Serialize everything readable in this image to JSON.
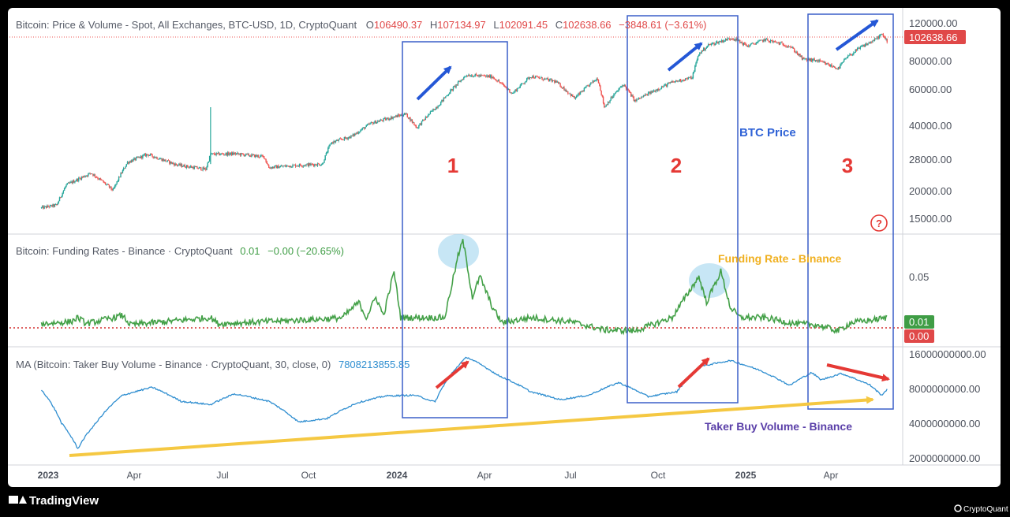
{
  "chart_data": [
    {
      "type": "candlestick",
      "title": "Bitcoin: Price & Volume - Spot, All Exchanges, BTC-USD, 1D, CryptoQuant",
      "ohlc": {
        "o_label": "O",
        "o": "106490.37",
        "h_label": "H",
        "h": "107134.97",
        "l_label": "L",
        "l": "102091.45",
        "c_label": "C",
        "c": "102638.66",
        "change": "−3848.61 (−3.61%)"
      },
      "last_price": "102638.66",
      "scale": "log",
      "y_ticks": [
        "120000.00",
        "80000.00",
        "60000.00",
        "40000.00",
        "28000.00",
        "20000.00",
        "15000.00"
      ],
      "series": [
        {
          "points": [
            [
              "2022-12-25",
              16800
            ],
            [
              "2023-01-10",
              17300
            ],
            [
              "2023-01-20",
              21500
            ],
            [
              "2023-02-15",
              24500
            ],
            [
              "2023-03-10",
              20300
            ],
            [
              "2023-03-25",
              27500
            ],
            [
              "2023-04-15",
              30000
            ],
            [
              "2023-05-15",
              26800
            ],
            [
              "2023-06-15",
              25500
            ],
            [
              "2023-06-20",
              30000
            ],
            [
              "2023-07-15",
              30200
            ],
            [
              "2023-08-15",
              29200
            ],
            [
              "2023-08-20",
              26000
            ],
            [
              "2023-09-15",
              26600
            ],
            [
              "2023-10-15",
              27000
            ],
            [
              "2023-10-24",
              34000
            ],
            [
              "2023-11-15",
              36500
            ],
            [
              "2023-12-05",
              42000
            ],
            [
              "2024-01-10",
              46500
            ],
            [
              "2024-01-22",
              40000
            ],
            [
              "2024-02-15",
              52000
            ],
            [
              "2024-03-14",
              71000
            ],
            [
              "2024-04-10",
              69500
            ],
            [
              "2024-05-01",
              58000
            ],
            [
              "2024-05-20",
              70000
            ],
            [
              "2024-06-15",
              66000
            ],
            [
              "2024-07-05",
              55000
            ],
            [
              "2024-07-29",
              68500
            ],
            [
              "2024-08-05",
              50000
            ],
            [
              "2024-08-25",
              64000
            ],
            [
              "2024-09-06",
              53500
            ],
            [
              "2024-10-15",
              65500
            ],
            [
              "2024-11-05",
              69000
            ],
            [
              "2024-11-12",
              89000
            ],
            [
              "2024-11-22",
              98000
            ],
            [
              "2024-12-17",
              106000
            ],
            [
              "2025-01-02",
              97000
            ],
            [
              "2025-01-20",
              104000
            ],
            [
              "2025-02-15",
              97000
            ],
            [
              "2025-03-01",
              84000
            ],
            [
              "2025-03-15",
              83000
            ],
            [
              "2025-04-07",
              76000
            ],
            [
              "2025-04-15",
              85000
            ],
            [
              "2025-05-01",
              96000
            ],
            [
              "2025-05-15",
              103500
            ],
            [
              "2025-05-22",
              110000
            ],
            [
              "2025-05-28",
              102638
            ]
          ]
        }
      ]
    },
    {
      "type": "line",
      "title": "Bitcoin: Funding Rates - Binance · CryptoQuant",
      "value_label": "0.01",
      "change": "−0.00 (−20.65%)",
      "y_ticks": [
        "0.05"
      ],
      "badges": [
        "0.01",
        "0.00"
      ],
      "series": [
        {
          "points": [
            [
              "2022-12-25",
              0.004
            ],
            [
              "2023-01-25",
              0.006
            ],
            [
              "2023-02-01",
              0.01
            ],
            [
              "2023-02-10",
              0.004
            ],
            [
              "2023-03-20",
              0.012
            ],
            [
              "2023-03-28",
              0.003
            ],
            [
              "2023-06-20",
              0.01
            ],
            [
              "2023-06-28",
              0.004
            ],
            [
              "2023-10-24",
              0.009
            ],
            [
              "2023-11-05",
              0.01
            ],
            [
              "2023-11-22",
              0.025
            ],
            [
              "2023-11-30",
              0.01
            ],
            [
              "2023-12-10",
              0.03
            ],
            [
              "2023-12-18",
              0.012
            ],
            [
              "2023-12-29",
              0.055
            ],
            [
              "2024-01-05",
              0.01
            ],
            [
              "2024-02-20",
              0.01
            ],
            [
              "2024-03-05",
              0.07
            ],
            [
              "2024-03-10",
              0.085
            ],
            [
              "2024-03-14",
              0.065
            ],
            [
              "2024-03-20",
              0.03
            ],
            [
              "2024-03-28",
              0.05
            ],
            [
              "2024-04-10",
              0.02
            ],
            [
              "2024-04-20",
              0.005
            ],
            [
              "2024-05-20",
              0.01
            ],
            [
              "2024-07-01",
              0.006
            ],
            [
              "2024-08-05",
              -0.002
            ],
            [
              "2024-09-06",
              -0.003
            ],
            [
              "2024-10-15",
              0.01
            ],
            [
              "2024-11-12",
              0.05
            ],
            [
              "2024-11-20",
              0.025
            ],
            [
              "2024-12-05",
              0.055
            ],
            [
              "2024-12-15",
              0.02
            ],
            [
              "2024-12-25",
              0.01
            ],
            [
              "2025-01-20",
              0.01
            ],
            [
              "2025-02-20",
              0.004
            ],
            [
              "2025-03-15",
              0.003
            ],
            [
              "2025-04-07",
              -0.003
            ],
            [
              "2025-04-20",
              0.005
            ],
            [
              "2025-05-15",
              0.008
            ],
            [
              "2025-05-28",
              0.01
            ]
          ]
        }
      ]
    },
    {
      "type": "line",
      "title": "MA (Bitcoin: Taker Buy Volume - Binance · CryptoQuant, 30, close, 0)",
      "value_label": "7808213855.85",
      "scale": "log",
      "y_ticks": [
        "16000000000.00",
        "8000000000.00",
        "4000000000.00",
        "2000000000.00"
      ],
      "series": [
        {
          "points": [
            [
              "2022-12-25",
              7800000000
            ],
            [
              "2023-01-15",
              4000000000
            ],
            [
              "2023-02-01",
              2400000000
            ],
            [
              "2023-02-20",
              4000000000
            ],
            [
              "2023-03-20",
              7000000000
            ],
            [
              "2023-04-20",
              8200000000
            ],
            [
              "2023-05-20",
              6200000000
            ],
            [
              "2023-06-20",
              5800000000
            ],
            [
              "2023-07-15",
              7200000000
            ],
            [
              "2023-08-20",
              6200000000
            ],
            [
              "2023-09-20",
              4100000000
            ],
            [
              "2023-10-20",
              4400000000
            ],
            [
              "2023-11-20",
              6000000000
            ],
            [
              "2023-12-20",
              6900000000
            ],
            [
              "2024-01-20",
              7000000000
            ],
            [
              "2024-02-10",
              6100000000
            ],
            [
              "2024-03-14",
              15000000000
            ],
            [
              "2024-04-15",
              10500000000
            ],
            [
              "2024-05-20",
              7500000000
            ],
            [
              "2024-06-20",
              6400000000
            ],
            [
              "2024-07-20",
              7000000000
            ],
            [
              "2024-08-20",
              9000000000
            ],
            [
              "2024-09-20",
              6800000000
            ],
            [
              "2024-10-20",
              7500000000
            ],
            [
              "2024-11-15",
              12500000000
            ],
            [
              "2024-12-15",
              14000000000
            ],
            [
              "2025-01-15",
              11500000000
            ],
            [
              "2025-02-15",
              8500000000
            ],
            [
              "2025-03-10",
              11000000000
            ],
            [
              "2025-03-20",
              9500000000
            ],
            [
              "2025-04-10",
              10800000000
            ],
            [
              "2025-05-10",
              8600000000
            ],
            [
              "2025-05-22",
              7000000000
            ],
            [
              "2025-05-28",
              7808213855
            ]
          ]
        }
      ]
    }
  ],
  "x_axis": {
    "ticks": [
      "2023",
      "Apr",
      "Jul",
      "Oct",
      "2024",
      "Apr",
      "Jul",
      "Oct",
      "2025",
      "Apr"
    ]
  },
  "annotations": {
    "regions": [
      "1",
      "2",
      "3"
    ],
    "btc_price": "BTC Price",
    "funding_rate": "Funding Rate - Binance",
    "taker_buy_volume": "Taker Buy Volume - Binance"
  },
  "help_icon": "?",
  "footer": {
    "brand": "TradingView",
    "watermark": "CryptoQuant"
  },
  "colors": {
    "price_up": "#26a69a",
    "price_down": "#ef5350",
    "funding_line": "#43a047",
    "volume_line": "#2f8ed0",
    "annotation_blue": "#2457d6",
    "annotation_red": "#e53935",
    "annotation_yellow": "#f5c842",
    "annotation_purple": "#5a3fa8",
    "funding_label": "#f0b020"
  }
}
